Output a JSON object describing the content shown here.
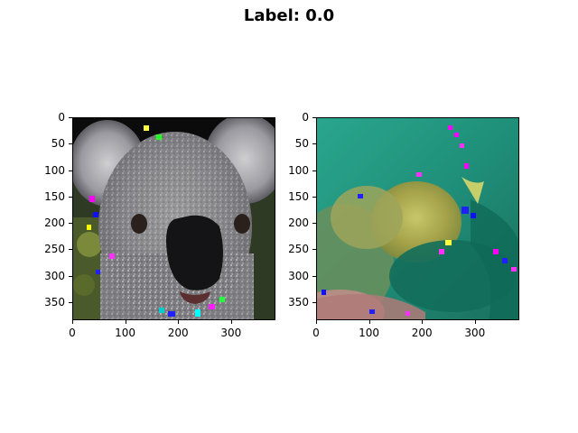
{
  "figure": {
    "suptitle": "Label: 0.0"
  },
  "axes": [
    {
      "name": "left-image",
      "depicts": "koala photo",
      "xticks": [
        "0",
        "100",
        "200",
        "300"
      ],
      "yticks": [
        "0",
        "50",
        "100",
        "150",
        "200",
        "250",
        "300",
        "350"
      ],
      "xlim": [
        0,
        384
      ],
      "ylim": [
        384,
        0
      ]
    },
    {
      "name": "right-image",
      "depicts": "teal and yellow abstract image",
      "xticks": [
        "0",
        "100",
        "200",
        "300"
      ],
      "yticks": [
        "0",
        "50",
        "100",
        "150",
        "200",
        "250",
        "300",
        "350"
      ],
      "xlim": [
        0,
        384
      ],
      "ylim": [
        384,
        0
      ]
    }
  ]
}
